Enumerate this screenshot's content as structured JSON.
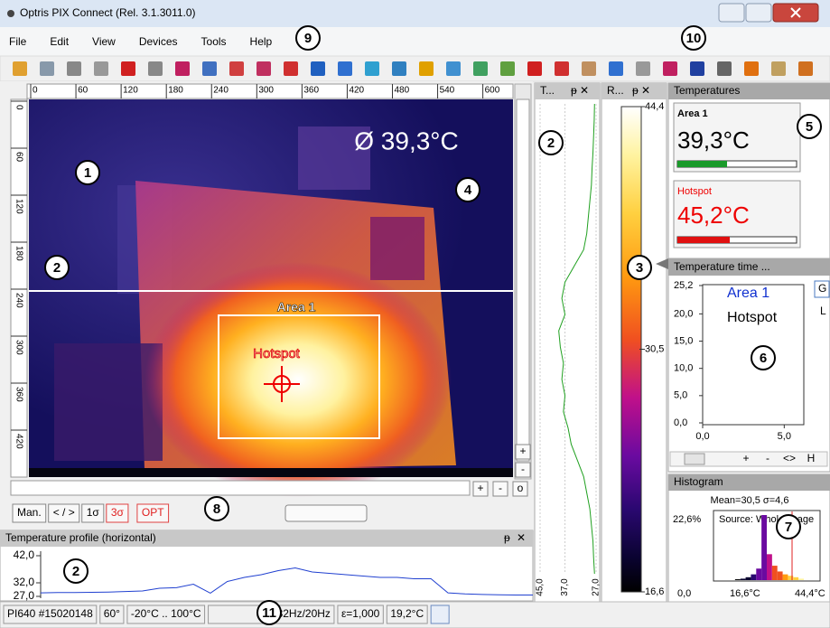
{
  "window": {
    "title": "Optris PIX Connect (Rel. 3.1.3011.0)"
  },
  "menu": [
    "File",
    "Edit",
    "View",
    "Devices",
    "Tools",
    "Help"
  ],
  "callouts": [
    "1",
    "2",
    "2",
    "2",
    "3",
    "4",
    "5",
    "6",
    "7",
    "8",
    "9",
    "10",
    "11"
  ],
  "image": {
    "ruler_x": {
      "lim": [
        0,
        640
      ],
      "ticks": [
        0,
        60,
        120,
        180,
        240,
        300,
        360,
        420,
        480,
        540,
        600
      ]
    },
    "ruler_y": {
      "lim": [
        0,
        480
      ],
      "ticks": [
        0,
        60,
        120,
        180,
        240,
        300,
        360,
        420
      ]
    },
    "mean_label": "Ø 39,3°C",
    "area_label": "Area 1",
    "hotspot_label": "Hotspot"
  },
  "zoom_buttons": [
    "+",
    "-",
    "o"
  ],
  "buttons": [
    "Man.",
    "< / >",
    "1σ",
    "3σ",
    "OPT"
  ],
  "horizontal_profile": {
    "title": "Temperature profile (horizontal)",
    "ylim": [
      27,
      42
    ],
    "yticks": [
      {
        "value": 42,
        "label": "42,0"
      },
      {
        "value": 32,
        "label": "32,0"
      },
      {
        "value": 27,
        "label": "27,0"
      }
    ],
    "values": [
      28.3,
      28.4,
      28.4,
      28.5,
      28.6,
      28.8,
      29,
      30,
      30.2,
      31.5,
      28.2,
      32.5,
      34,
      35,
      36.5,
      37.5,
      36,
      35.5,
      35,
      34.5,
      34,
      34,
      33.5,
      33.5,
      28.3,
      27.9,
      27.7,
      27.6,
      27.5,
      27.5
    ]
  },
  "vertical_profile": {
    "title": "T...",
    "xlim": [
      45,
      27
    ],
    "xticks": [
      {
        "value": 45,
        "label": "45,0"
      },
      {
        "value": 37,
        "label": "37,0"
      },
      {
        "value": 27,
        "label": "27,0"
      }
    ],
    "values": [
      27.5,
      27.6,
      27.8,
      28,
      28.3,
      28.5,
      29,
      29.5,
      30,
      31,
      34,
      37,
      38,
      37,
      39,
      38.5,
      37.5,
      38,
      37,
      37.5,
      36,
      35,
      33,
      31,
      30,
      29,
      28.5,
      28,
      27.8,
      27.5
    ]
  },
  "colorbar": {
    "title": "R...",
    "lim": [
      16.6,
      44.4
    ],
    "ticks": [
      {
        "value": 44.4,
        "label": "44,4"
      },
      {
        "value": 30.5,
        "label": "30,5"
      },
      {
        "value": 16.6,
        "label": "16,6"
      }
    ]
  },
  "temperatures": {
    "title": "Temperatures",
    "items": [
      {
        "name": "Area 1",
        "value_label": "39,3°C"
      },
      {
        "name": "Hotspot",
        "value_label": "45,2°C"
      }
    ]
  },
  "time_chart": {
    "title": "Temperature time ...",
    "ylim": [
      0,
      25.2
    ],
    "yticks": [
      {
        "value": 25.2,
        "label": "25,2"
      },
      {
        "value": 20,
        "label": "20,0"
      },
      {
        "value": 15,
        "label": "15,0"
      },
      {
        "value": 10,
        "label": "10,0"
      },
      {
        "value": 5,
        "label": "5,0"
      },
      {
        "value": 0,
        "label": "0,0"
      }
    ],
    "xlim": [
      0,
      6.2
    ],
    "xticks": [
      {
        "value": 0,
        "label": "0,0"
      },
      {
        "value": 5,
        "label": "5,0"
      }
    ],
    "legend": [
      "Area 1",
      "Hotspot"
    ],
    "side": [
      "G",
      "L"
    ],
    "scroll_labels": [
      "+",
      "-",
      "<>",
      "H"
    ]
  },
  "histogram": {
    "title": "Histogram",
    "stats": "Mean=30,5 σ=4,6",
    "source": "Source: Whole image",
    "ymax_label": "22,6%",
    "y0_label": "0,0",
    "x_labels": [
      "16,6°C",
      "44,4°C"
    ],
    "xlim": [
      16.6,
      44.4
    ],
    "ylim": [
      0,
      22.6
    ],
    "values": [
      0,
      0.3,
      0.5,
      1,
      2,
      4,
      22.6,
      9,
      5,
      3,
      2,
      1.5,
      1,
      0.5
    ]
  },
  "status": [
    "PI640 #15020148",
    "60°",
    "-20°C .. 100°C",
    "32Hz/20Hz",
    "ε=1,000",
    "19,2°C"
  ]
}
